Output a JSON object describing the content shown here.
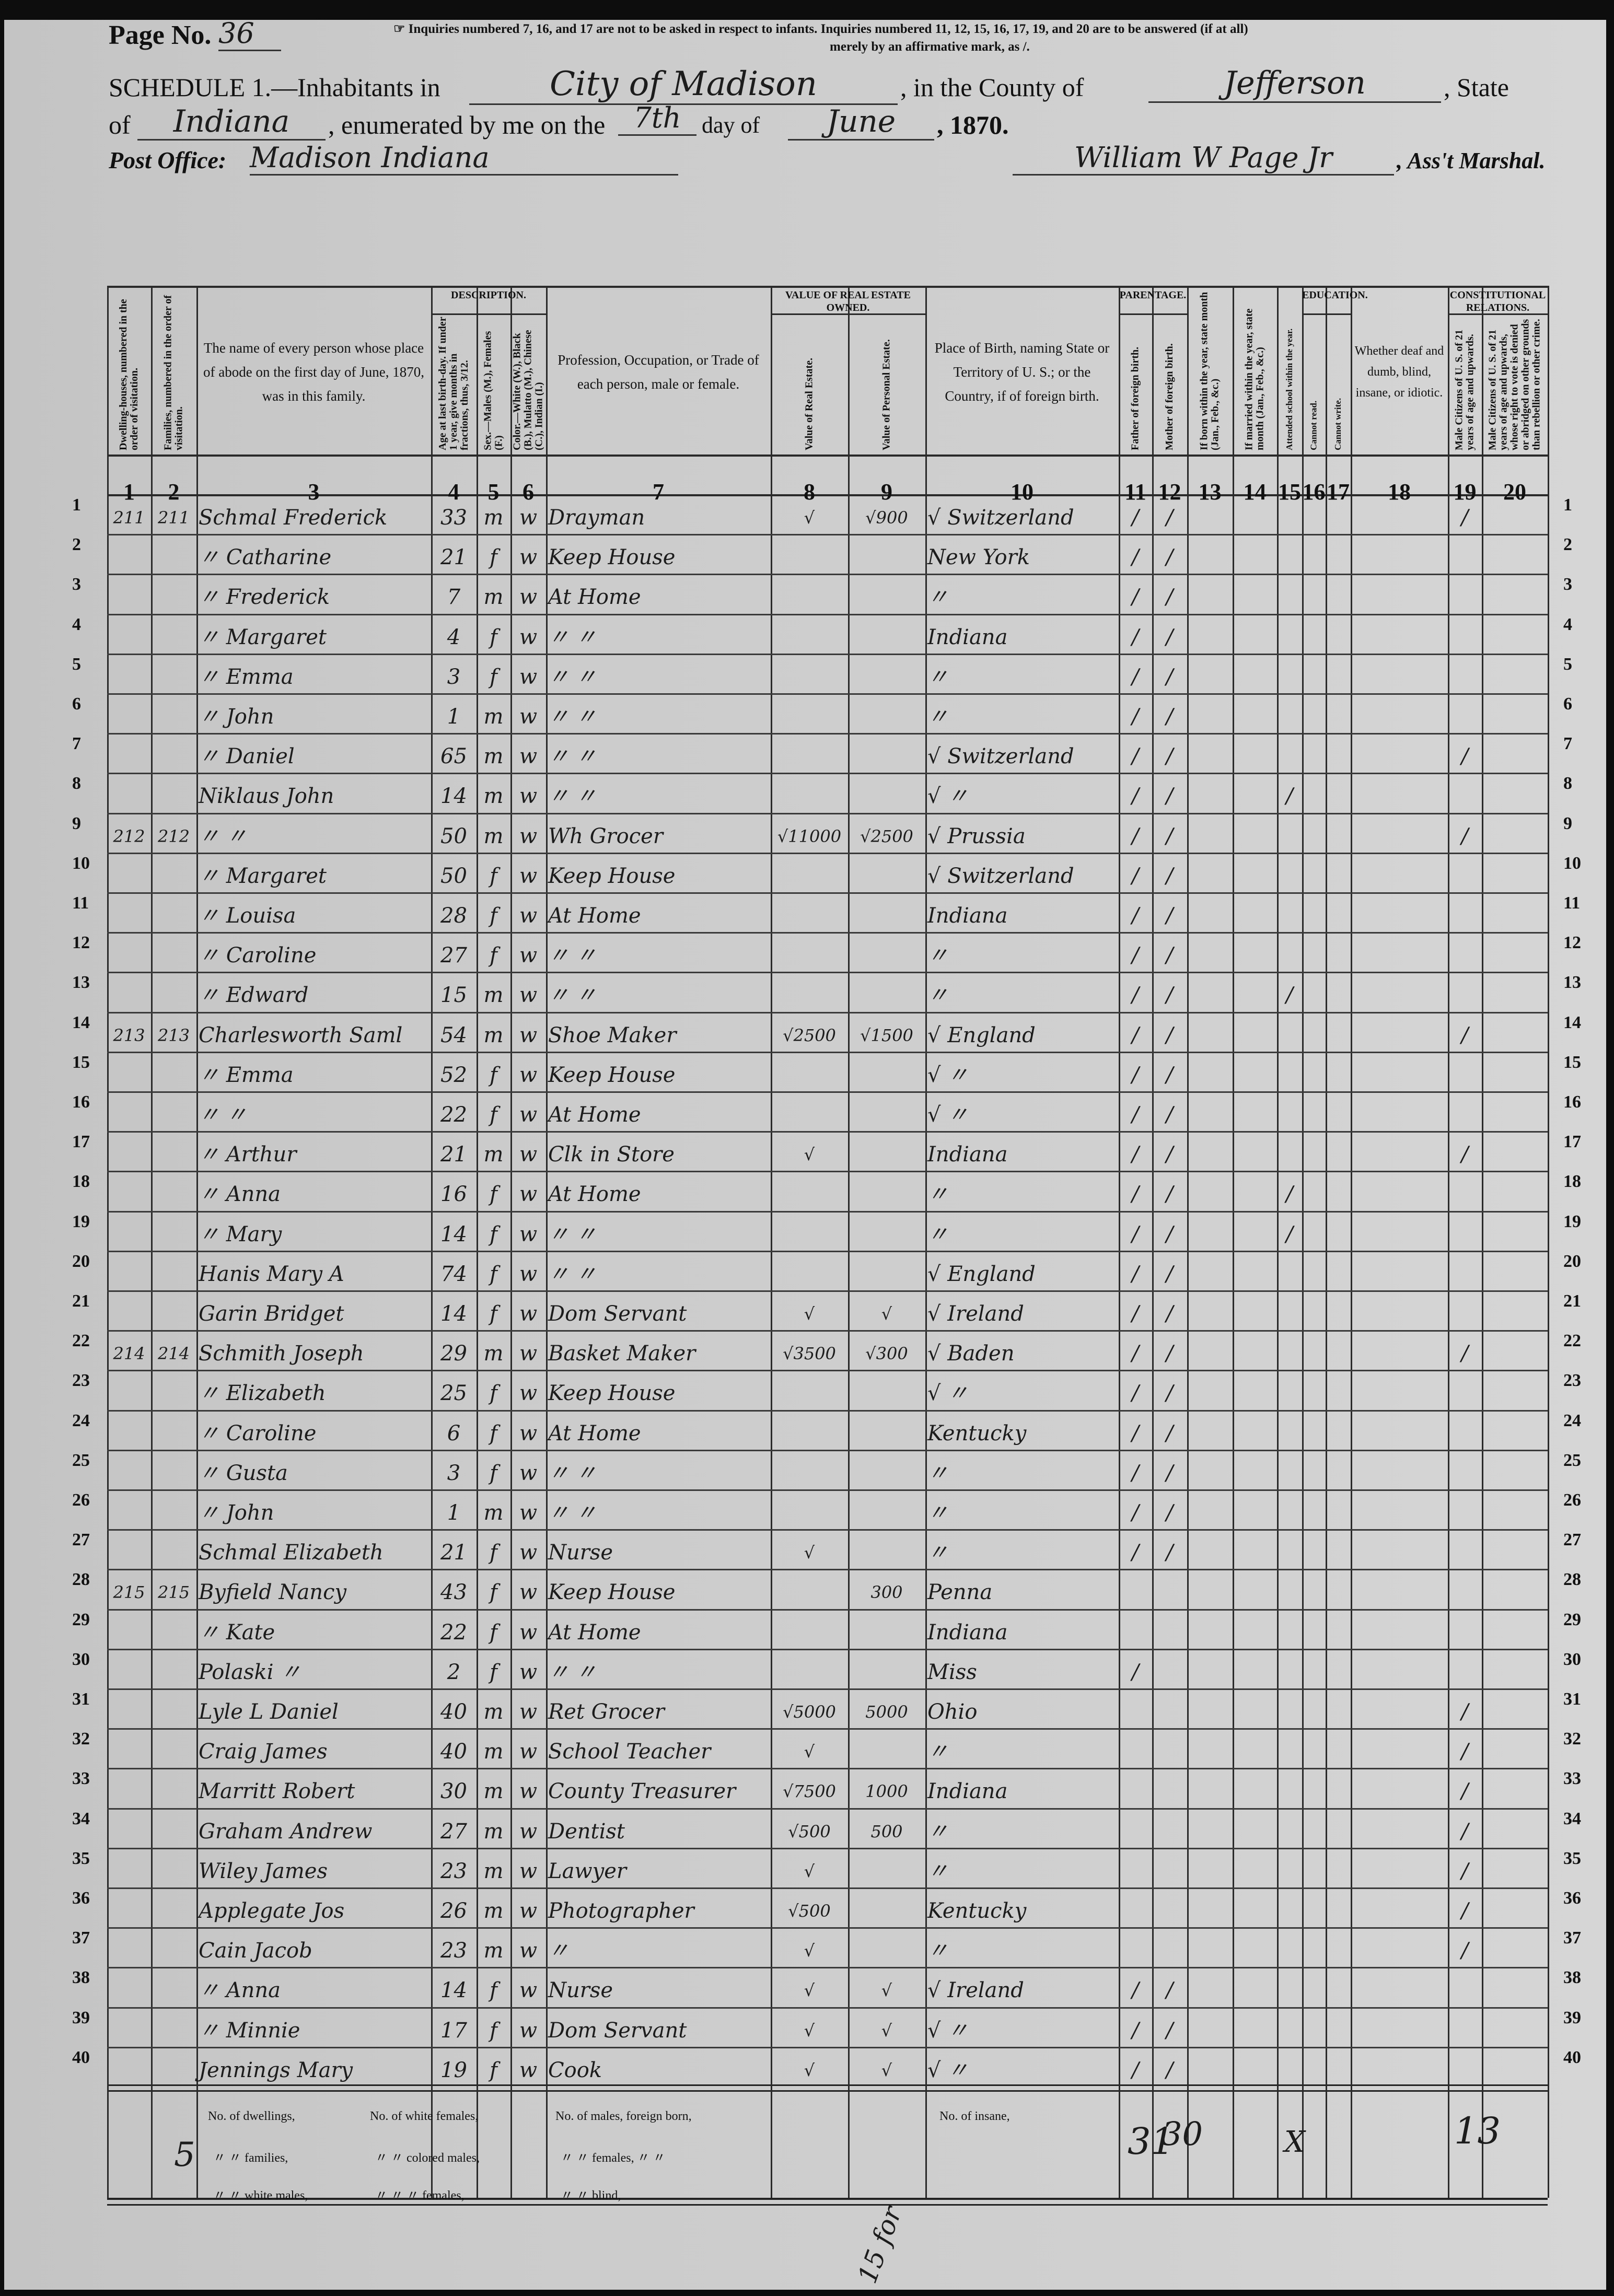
{
  "header": {
    "page_no_label": "Page No.",
    "page_no": "36",
    "inquiries_note_1": "☞ Inquiries numbered 7, 16, and 17 are not to be asked in respect to infants.  Inquiries numbered 11, 12, 15, 16, 17, 19, and 20 are to be answered (if at all)",
    "inquiries_note_2": "merely by an affirmative mark, as /.",
    "schedule_label": "SCHEDULE 1.—Inhabitants in",
    "place": "City of Madison",
    "county_label": ", in the County of",
    "county": "Jefferson",
    "state_label": ", State",
    "of_label": "of",
    "state": "Indiana",
    "enumerated_label": ", enumerated by me on the",
    "day": "7th",
    "day_of_label": "day of",
    "month": "June",
    "year_label": ", 1870.",
    "post_office_label": "Post Office:",
    "post_office": "Madison Indiana",
    "marshal": "William W Page Jr",
    "marshal_label": ", Ass't Marshal."
  },
  "groups": {
    "description": "DESCRIPTION.",
    "value": "VALUE OF REAL ESTATE OWNED.",
    "parentage": "PARENTAGE.",
    "education": "EDUCATION.",
    "constitutional": "CONSTITUTIONAL RELATIONS."
  },
  "columns": [
    {
      "num": "1",
      "label": "Dwelling-houses, numbered in the order of visitation."
    },
    {
      "num": "2",
      "label": "Families, numbered in the order of visitation."
    },
    {
      "num": "3",
      "label": "The name of every person whose place of abode on the first day of June, 1870, was in this family."
    },
    {
      "num": "4",
      "label": "Age at last birth-day. If under 1 year, give months in fractions, thus, 3/12."
    },
    {
      "num": "5",
      "label": "Sex.—Males (M.), Females (F.)"
    },
    {
      "num": "6",
      "label": "Color.—White (W.), Black (B.), Mulatto (M.), Chinese (C.), Indian (I.)"
    },
    {
      "num": "7",
      "label": "Profession, Occupation, or Trade of each person, male or female."
    },
    {
      "num": "8",
      "label": "Value of Real Estate."
    },
    {
      "num": "9",
      "label": "Value of Personal Estate."
    },
    {
      "num": "10",
      "label": "Place of Birth, naming State or Territory of U. S.; or the Country, if of foreign birth."
    },
    {
      "num": "11",
      "label": "Father of foreign birth."
    },
    {
      "num": "12",
      "label": "Mother of foreign birth."
    },
    {
      "num": "13",
      "label": "If born within the year, state month (Jan., Feb., &c.)"
    },
    {
      "num": "14",
      "label": "If married within the year, state month (Jan., Feb., &c.)"
    },
    {
      "num": "15",
      "label": "Attended school within the year."
    },
    {
      "num": "16",
      "label": "Cannot read."
    },
    {
      "num": "17",
      "label": "Cannot write."
    },
    {
      "num": "18",
      "label": "Whether deaf and dumb, blind, insane, or idiotic."
    },
    {
      "num": "19",
      "label": "Male Citizens of U. S. of 21 years of age and upwards."
    },
    {
      "num": "20",
      "label": "Male Citizens of U. S. of 21 years of age and upwards, whose right to vote is denied or abridged on other grounds than rebellion or other crime."
    }
  ],
  "rows": [
    {
      "line": "1",
      "dwelling": "211",
      "family": "211",
      "name": "Schmal Frederick",
      "age": "33",
      "sex": "m",
      "color": "w",
      "occupation": "Drayman",
      "real_estate": "√",
      "personal_estate": "√900",
      "birthplace": "√ Switzerland",
      "father": "/",
      "mother": "/",
      "school": "",
      "citizen": "/"
    },
    {
      "line": "2",
      "dwelling": "",
      "family": "",
      "name": "〃 Catharine",
      "age": "21",
      "sex": "f",
      "color": "w",
      "occupation": "Keep House",
      "real_estate": "",
      "personal_estate": "",
      "birthplace": "New York",
      "father": "/",
      "mother": "/",
      "school": "",
      "citizen": ""
    },
    {
      "line": "3",
      "dwelling": "",
      "family": "",
      "name": "〃 Frederick",
      "age": "7",
      "sex": "m",
      "color": "w",
      "occupation": "At Home",
      "real_estate": "",
      "personal_estate": "",
      "birthplace": "〃",
      "father": "/",
      "mother": "/",
      "school": "",
      "citizen": ""
    },
    {
      "line": "4",
      "dwelling": "",
      "family": "",
      "name": "〃 Margaret",
      "age": "4",
      "sex": "f",
      "color": "w",
      "occupation": "〃 〃",
      "real_estate": "",
      "personal_estate": "",
      "birthplace": "Indiana",
      "father": "/",
      "mother": "/",
      "school": "",
      "citizen": ""
    },
    {
      "line": "5",
      "dwelling": "",
      "family": "",
      "name": "〃 Emma",
      "age": "3",
      "sex": "f",
      "color": "w",
      "occupation": "〃 〃",
      "real_estate": "",
      "personal_estate": "",
      "birthplace": "〃",
      "father": "/",
      "mother": "/",
      "school": "",
      "citizen": ""
    },
    {
      "line": "6",
      "dwelling": "",
      "family": "",
      "name": "〃 John",
      "age": "1",
      "sex": "m",
      "color": "w",
      "occupation": "〃 〃",
      "real_estate": "",
      "personal_estate": "",
      "birthplace": "〃",
      "father": "/",
      "mother": "/",
      "school": "",
      "citizen": ""
    },
    {
      "line": "7",
      "dwelling": "",
      "family": "",
      "name": "〃 Daniel",
      "age": "65",
      "sex": "m",
      "color": "w",
      "occupation": "〃 〃",
      "real_estate": "",
      "personal_estate": "",
      "birthplace": "√ Switzerland",
      "father": "/",
      "mother": "/",
      "school": "",
      "citizen": "/"
    },
    {
      "line": "8",
      "dwelling": "",
      "family": "",
      "name": "Niklaus John",
      "age": "14",
      "sex": "m",
      "color": "w",
      "occupation": "〃 〃",
      "real_estate": "",
      "personal_estate": "",
      "birthplace": "√ 〃",
      "father": "/",
      "mother": "/",
      "school": "/",
      "citizen": ""
    },
    {
      "line": "9",
      "dwelling": "212",
      "family": "212",
      "name": "〃 〃",
      "age": "50",
      "sex": "m",
      "color": "w",
      "occupation": "Wh Grocer",
      "real_estate": "√11000",
      "personal_estate": "√2500",
      "birthplace": "√ Prussia",
      "father": "/",
      "mother": "/",
      "school": "",
      "citizen": "/"
    },
    {
      "line": "10",
      "dwelling": "",
      "family": "",
      "name": "〃 Margaret",
      "age": "50",
      "sex": "f",
      "color": "w",
      "occupation": "Keep House",
      "real_estate": "",
      "personal_estate": "",
      "birthplace": "√ Switzerland",
      "father": "/",
      "mother": "/",
      "school": "",
      "citizen": ""
    },
    {
      "line": "11",
      "dwelling": "",
      "family": "",
      "name": "〃 Louisa",
      "age": "28",
      "sex": "f",
      "color": "w",
      "occupation": "At Home",
      "real_estate": "",
      "personal_estate": "",
      "birthplace": "Indiana",
      "father": "/",
      "mother": "/",
      "school": "",
      "citizen": ""
    },
    {
      "line": "12",
      "dwelling": "",
      "family": "",
      "name": "〃 Caroline",
      "age": "27",
      "sex": "f",
      "color": "w",
      "occupation": "〃 〃",
      "real_estate": "",
      "personal_estate": "",
      "birthplace": "〃",
      "father": "/",
      "mother": "/",
      "school": "",
      "citizen": ""
    },
    {
      "line": "13",
      "dwelling": "",
      "family": "",
      "name": "〃 Edward",
      "age": "15",
      "sex": "m",
      "color": "w",
      "occupation": "〃 〃",
      "real_estate": "",
      "personal_estate": "",
      "birthplace": "〃",
      "father": "/",
      "mother": "/",
      "school": "/",
      "citizen": ""
    },
    {
      "line": "14",
      "dwelling": "213",
      "family": "213",
      "name": "Charlesworth Saml",
      "age": "54",
      "sex": "m",
      "color": "w",
      "occupation": "Shoe Maker",
      "real_estate": "√2500",
      "personal_estate": "√1500",
      "birthplace": "√ England",
      "father": "/",
      "mother": "/",
      "school": "",
      "citizen": "/"
    },
    {
      "line": "15",
      "dwelling": "",
      "family": "",
      "name": "〃 Emma",
      "age": "52",
      "sex": "f",
      "color": "w",
      "occupation": "Keep House",
      "real_estate": "",
      "personal_estate": "",
      "birthplace": "√ 〃",
      "father": "/",
      "mother": "/",
      "school": "",
      "citizen": ""
    },
    {
      "line": "16",
      "dwelling": "",
      "family": "",
      "name": "〃 〃",
      "age": "22",
      "sex": "f",
      "color": "w",
      "occupation": "At Home",
      "real_estate": "",
      "personal_estate": "",
      "birthplace": "√ 〃",
      "father": "/",
      "mother": "/",
      "school": "",
      "citizen": ""
    },
    {
      "line": "17",
      "dwelling": "",
      "family": "",
      "name": "〃 Arthur",
      "age": "21",
      "sex": "m",
      "color": "w",
      "occupation": "Clk in Store",
      "real_estate": "√",
      "personal_estate": "",
      "birthplace": "Indiana",
      "father": "/",
      "mother": "/",
      "school": "",
      "citizen": "/"
    },
    {
      "line": "18",
      "dwelling": "",
      "family": "",
      "name": "〃 Anna",
      "age": "16",
      "sex": "f",
      "color": "w",
      "occupation": "At Home",
      "real_estate": "",
      "personal_estate": "",
      "birthplace": "〃",
      "father": "/",
      "mother": "/",
      "school": "/",
      "citizen": ""
    },
    {
      "line": "19",
      "dwelling": "",
      "family": "",
      "name": "〃 Mary",
      "age": "14",
      "sex": "f",
      "color": "w",
      "occupation": "〃 〃",
      "real_estate": "",
      "personal_estate": "",
      "birthplace": "〃",
      "father": "/",
      "mother": "/",
      "school": "/",
      "citizen": ""
    },
    {
      "line": "20",
      "dwelling": "",
      "family": "",
      "name": "Hanis Mary A",
      "age": "74",
      "sex": "f",
      "color": "w",
      "occupation": "〃 〃",
      "real_estate": "",
      "personal_estate": "",
      "birthplace": "√ England",
      "father": "/",
      "mother": "/",
      "school": "",
      "citizen": ""
    },
    {
      "line": "21",
      "dwelling": "",
      "family": "",
      "name": "Garin Bridget",
      "age": "14",
      "sex": "f",
      "color": "w",
      "occupation": "Dom Servant",
      "real_estate": "√",
      "personal_estate": "√",
      "birthplace": "√ Ireland",
      "father": "/",
      "mother": "/",
      "school": "",
      "citizen": ""
    },
    {
      "line": "22",
      "dwelling": "214",
      "family": "214",
      "name": "Schmith Joseph",
      "age": "29",
      "sex": "m",
      "color": "w",
      "occupation": "Basket Maker",
      "real_estate": "√3500",
      "personal_estate": "√300",
      "birthplace": "√ Baden",
      "father": "/",
      "mother": "/",
      "school": "",
      "citizen": "/"
    },
    {
      "line": "23",
      "dwelling": "",
      "family": "",
      "name": "〃 Elizabeth",
      "age": "25",
      "sex": "f",
      "color": "w",
      "occupation": "Keep House",
      "real_estate": "",
      "personal_estate": "",
      "birthplace": "√ 〃",
      "father": "/",
      "mother": "/",
      "school": "",
      "citizen": ""
    },
    {
      "line": "24",
      "dwelling": "",
      "family": "",
      "name": "〃 Caroline",
      "age": "6",
      "sex": "f",
      "color": "w",
      "occupation": "At Home",
      "real_estate": "",
      "personal_estate": "",
      "birthplace": "Kentucky",
      "father": "/",
      "mother": "/",
      "school": "",
      "citizen": ""
    },
    {
      "line": "25",
      "dwelling": "",
      "family": "",
      "name": "〃 Gusta",
      "age": "3",
      "sex": "f",
      "color": "w",
      "occupation": "〃 〃",
      "real_estate": "",
      "personal_estate": "",
      "birthplace": "〃",
      "father": "/",
      "mother": "/",
      "school": "",
      "citizen": ""
    },
    {
      "line": "26",
      "dwelling": "",
      "family": "",
      "name": "〃 John",
      "age": "1",
      "sex": "m",
      "color": "w",
      "occupation": "〃 〃",
      "real_estate": "",
      "personal_estate": "",
      "birthplace": "〃",
      "father": "/",
      "mother": "/",
      "school": "",
      "citizen": ""
    },
    {
      "line": "27",
      "dwelling": "",
      "family": "",
      "name": "Schmal Elizabeth",
      "age": "21",
      "sex": "f",
      "color": "w",
      "occupation": "Nurse",
      "real_estate": "√",
      "personal_estate": "",
      "birthplace": "〃",
      "father": "/",
      "mother": "/",
      "school": "",
      "citizen": ""
    },
    {
      "line": "28",
      "dwelling": "215",
      "family": "215",
      "name": "Byfield Nancy",
      "age": "43",
      "sex": "f",
      "color": "w",
      "occupation": "Keep House",
      "real_estate": "",
      "personal_estate": "300",
      "birthplace": "Penna",
      "father": "",
      "mother": "",
      "school": "",
      "citizen": ""
    },
    {
      "line": "29",
      "dwelling": "",
      "family": "",
      "name": "〃 Kate",
      "age": "22",
      "sex": "f",
      "color": "w",
      "occupation": "At Home",
      "real_estate": "",
      "personal_estate": "",
      "birthplace": "Indiana",
      "father": "",
      "mother": "",
      "school": "",
      "citizen": ""
    },
    {
      "line": "30",
      "dwelling": "",
      "family": "",
      "name": "Polaski 〃",
      "age": "2",
      "sex": "f",
      "color": "w",
      "occupation": "〃 〃",
      "real_estate": "",
      "personal_estate": "",
      "birthplace": "Miss",
      "father": "/",
      "mother": "",
      "school": "",
      "citizen": ""
    },
    {
      "line": "31",
      "dwelling": "",
      "family": "",
      "name": "Lyle L Daniel",
      "age": "40",
      "sex": "m",
      "color": "w",
      "occupation": "Ret Grocer",
      "real_estate": "√5000",
      "personal_estate": "5000",
      "birthplace": "Ohio",
      "father": "",
      "mother": "",
      "school": "",
      "citizen": "/"
    },
    {
      "line": "32",
      "dwelling": "",
      "family": "",
      "name": "Craig James",
      "age": "40",
      "sex": "m",
      "color": "w",
      "occupation": "School Teacher",
      "real_estate": "√",
      "personal_estate": "",
      "birthplace": "〃",
      "father": "",
      "mother": "",
      "school": "",
      "citizen": "/"
    },
    {
      "line": "33",
      "dwelling": "",
      "family": "",
      "name": "Marritt Robert",
      "age": "30",
      "sex": "m",
      "color": "w",
      "occupation": "County Treasurer",
      "real_estate": "√7500",
      "personal_estate": "1000",
      "birthplace": "Indiana",
      "father": "",
      "mother": "",
      "school": "",
      "citizen": "/"
    },
    {
      "line": "34",
      "dwelling": "",
      "family": "",
      "name": "Graham Andrew",
      "age": "27",
      "sex": "m",
      "color": "w",
      "occupation": "Dentist",
      "real_estate": "√500",
      "personal_estate": "500",
      "birthplace": "〃",
      "father": "",
      "mother": "",
      "school": "",
      "citizen": "/"
    },
    {
      "line": "35",
      "dwelling": "",
      "family": "",
      "name": "Wiley James",
      "age": "23",
      "sex": "m",
      "color": "w",
      "occupation": "Lawyer",
      "real_estate": "√",
      "personal_estate": "",
      "birthplace": "〃",
      "father": "",
      "mother": "",
      "school": "",
      "citizen": "/"
    },
    {
      "line": "36",
      "dwelling": "",
      "family": "",
      "name": "Applegate Jos",
      "age": "26",
      "sex": "m",
      "color": "w",
      "occupation": "Photographer",
      "real_estate": "√500",
      "personal_estate": "",
      "birthplace": "Kentucky",
      "father": "",
      "mother": "",
      "school": "",
      "citizen": "/"
    },
    {
      "line": "37",
      "dwelling": "",
      "family": "",
      "name": "Cain Jacob",
      "age": "23",
      "sex": "m",
      "color": "w",
      "occupation": "〃",
      "real_estate": "√",
      "personal_estate": "",
      "birthplace": "〃",
      "father": "",
      "mother": "",
      "school": "",
      "citizen": "/"
    },
    {
      "line": "38",
      "dwelling": "",
      "family": "",
      "name": "〃 Anna",
      "age": "14",
      "sex": "f",
      "color": "w",
      "occupation": "Nurse",
      "real_estate": "√",
      "personal_estate": "√",
      "birthplace": "√ Ireland",
      "father": "/",
      "mother": "/",
      "school": "",
      "citizen": ""
    },
    {
      "line": "39",
      "dwelling": "",
      "family": "",
      "name": "〃 Minnie",
      "age": "17",
      "sex": "f",
      "color": "w",
      "occupation": "Dom Servant",
      "real_estate": "√",
      "personal_estate": "√",
      "birthplace": "√ 〃",
      "father": "/",
      "mother": "/",
      "school": "",
      "citizen": ""
    },
    {
      "line": "40",
      "dwelling": "",
      "family": "",
      "name": "Jennings Mary",
      "age": "19",
      "sex": "f",
      "color": "w",
      "occupation": "Cook",
      "real_estate": "√",
      "personal_estate": "√",
      "birthplace": "√ 〃",
      "father": "/",
      "mother": "/",
      "school": "",
      "citizen": ""
    }
  ],
  "footer": {
    "dwellings": "No. of dwellings,",
    "families": "〃 〃 families,",
    "white_males": "〃 〃 white males,",
    "white_females": "No. of white females,",
    "colored_males": "〃 〃 colored males,",
    "colored_females": "〃 〃    〃    females,",
    "males_foreign": "No. of males, foreign born,",
    "females_foreign": "〃 〃 females,   〃    〃",
    "blind": "〃 〃 blind,",
    "insane": "No. of insane,",
    "tally_left": "5",
    "tally_father": "31",
    "tally_mother": "30",
    "tally_school": "X",
    "tally_citizens": "13",
    "bottom_note": "15 for"
  }
}
